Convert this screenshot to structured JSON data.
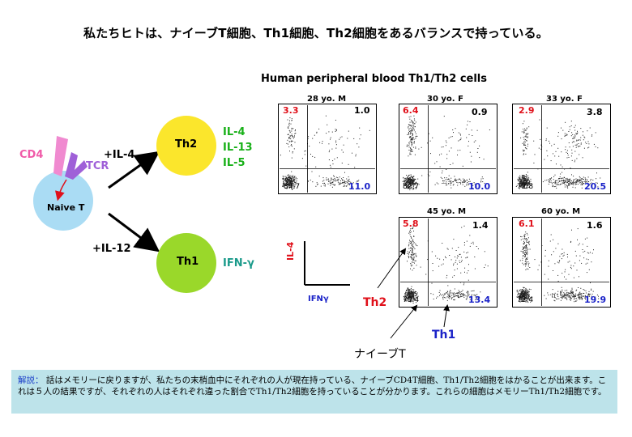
{
  "title": "私たちヒトは、ナイーブT細胞、Th1細胞、Th2細胞をあるバランスで持っている。",
  "diagram": {
    "naive_label": "Naive T",
    "cd4_label": "CD4",
    "tcr_label": "TCR",
    "il4_arrow": "+IL-4",
    "il12_arrow": "+IL-12",
    "th2_label": "Th2",
    "th1_label": "Th1",
    "th2_cytokines": [
      "IL-4",
      "IL-13",
      "IL-5"
    ],
    "th1_cytokine": "IFN-γ",
    "colors": {
      "naive": "#aadcf4",
      "th2": "#fbe62c",
      "th1": "#9ad82a",
      "cd4": "#f08ad0",
      "tcr": "#9f60d8"
    }
  },
  "panels_title": "Human peripheral blood Th1/Th2 cells",
  "panels": [
    {
      "label": "28 yo. M",
      "ul": "3.3",
      "ur": "1.0",
      "ll": "84.7",
      "lr": "11.0"
    },
    {
      "label": "30 yo. F",
      "ul": "6.4",
      "ur": "0.9",
      "ll": "82.7",
      "lr": "10.0"
    },
    {
      "label": "33 yo. F",
      "ul": "2.9",
      "ur": "3.8",
      "ll": "72.8",
      "lr": "20.5"
    },
    {
      "label": "45 yo. M",
      "ul": "5.8",
      "ur": "1.4",
      "ll": "79.4",
      "lr": "13.4"
    },
    {
      "label": "60 yo. M",
      "ul": "6.1",
      "ur": "1.6",
      "ll": "72.4",
      "lr": "19.9"
    }
  ],
  "axes": {
    "y": "IL-4",
    "x": "IFNγ"
  },
  "annotations": {
    "th2": "Th2",
    "th1": "Th1",
    "naive": "ナイーブT"
  },
  "note": {
    "label": "解説：",
    "text": "話はメモリーに戻りますが、私たちの末梢血中にそれぞれの人が現在持っている、ナイーブCD4T細胞、Th1/Th2細胞をはかることが出来ます。これは５人の結果ですが、それぞれの人はそれぞれ違った割合でTh1/Th2細胞を持っていることが分かります。これらの細胞はメモリーTh1/Th2細胞です。"
  }
}
